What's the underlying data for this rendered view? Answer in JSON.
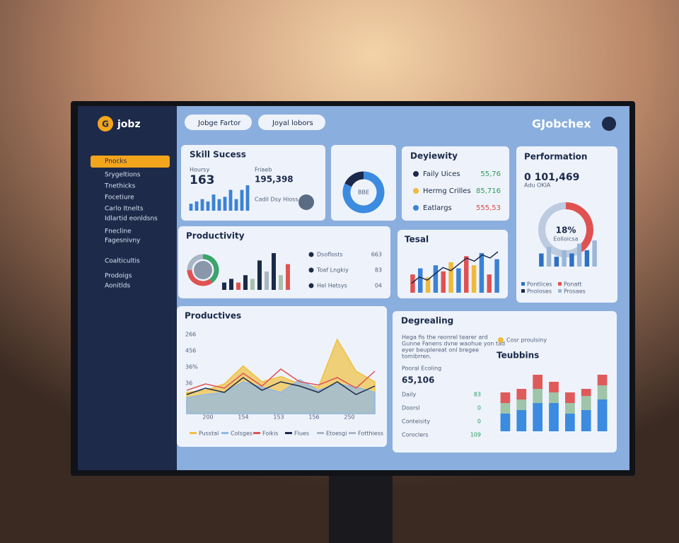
{
  "brand": {
    "logo": "G",
    "name": "jobz"
  },
  "header": {
    "search": "Jobge Fartor",
    "filter": "Joyal lobors",
    "title": "GJobchex"
  },
  "sidebar": [
    "Pnocks",
    "Srygeltions",
    "Tnethicks",
    "Focetiure",
    "Carlo Itnelts",
    "Idlartid eonldsns",
    "Fnecline",
    "Fagesnivny",
    "Coalticultis",
    "Prodoigs",
    "Aonitlds"
  ],
  "skill": {
    "title": "Skill Sucess",
    "label": "Hoursy",
    "value": "163",
    "label2": "Friaeb",
    "value2": "195,398",
    "note": "Cadil Dsy Hioss",
    "color": "#3b82d6",
    "bars": [
      3,
      4,
      5,
      4,
      7,
      5,
      6,
      9,
      5,
      9,
      11
    ],
    "donut": {
      "center": "BBE",
      "values": [
        82,
        18
      ],
      "colors": [
        "#3b8be0",
        "#1b2a4a"
      ]
    }
  },
  "activity": {
    "title": "Deyiewity",
    "rows": [
      {
        "label": "Faily Uices",
        "value": "55,76"
      },
      {
        "label": "Hermg Crilles",
        "value": "85,716"
      },
      {
        "label": "Eatlargs",
        "value": "555,53"
      }
    ]
  },
  "performance": {
    "title": "Performation",
    "value": "0 101,469",
    "sub": "Adu OKIA",
    "center": "18%",
    "center_sub": "Eolloicsa",
    "ring": {
      "values": [
        40,
        60
      ],
      "colors": [
        "#e05252",
        "#bccbe0"
      ]
    },
    "bars": [
      4,
      6,
      3,
      5,
      4,
      7,
      5,
      8
    ],
    "colors": [
      "#2f6fc4",
      "#9bb6d8"
    ],
    "legend": [
      "Pontlices",
      "Ponatt",
      "Pnoloses",
      "Prosaes"
    ]
  },
  "productivity": {
    "title": "Productivity",
    "donut": {
      "values": [
        40,
        35,
        25
      ],
      "colors": [
        "#3aa46a",
        "#e05252",
        "#a9b6c6"
      ]
    },
    "bars": [
      2,
      3,
      2,
      4,
      3,
      8,
      5,
      10,
      4,
      7
    ],
    "colors": [
      "#1b2a4a",
      "#1b2a4a",
      "#e05252",
      "#1b2a4a",
      "#a9c0b0",
      "#1b2a4a",
      "#a9b6c6",
      "#1b2a4a",
      "#a9c0b0",
      "#e05252"
    ],
    "rows": [
      {
        "label": "Dsoflosts",
        "value": "663"
      },
      {
        "label": "Toaf Lngkiy",
        "value": "83"
      },
      {
        "label": "Hel Hetsys",
        "value": "04"
      }
    ]
  },
  "tesal": {
    "title": "Tesal",
    "bars": [
      6,
      8,
      5,
      9,
      7,
      10,
      8,
      12,
      9,
      13,
      6,
      11
    ],
    "colors": [
      "#e05252",
      "#3b82d6",
      "#f0b93a",
      "#3b82d6",
      "#e05252",
      "#f0b93a",
      "#3b82d6",
      "#e05252",
      "#f0b93a",
      "#3b82d6",
      "#e05252",
      "#3b82d6"
    ],
    "line": [
      3,
      5,
      4,
      6,
      8,
      7,
      9,
      11,
      10,
      12,
      11,
      13
    ],
    "line_color": "#1b2a4a"
  },
  "productives": {
    "title": "Productives",
    "ytick_labels": [
      "266",
      "456",
      "36%",
      "36"
    ],
    "x_labels": [
      "200",
      "154",
      "153",
      "156",
      "250"
    ],
    "series": [
      {
        "name": "Pusstal",
        "color": "#f0c040",
        "values": [
          20,
          22,
          28,
          45,
          30,
          35,
          28,
          25,
          70,
          40,
          30
        ]
      },
      {
        "name": "Colsges",
        "color": "#8fb8e8",
        "values": [
          15,
          18,
          20,
          30,
          25,
          20,
          32,
          22,
          28,
          25,
          20
        ]
      },
      {
        "name": "Foikis",
        "color": "#e05252",
        "values": [
          22,
          28,
          24,
          38,
          26,
          42,
          30,
          27,
          34,
          24,
          40
        ]
      },
      {
        "name": "Flues",
        "color": "#1b2a4a",
        "values": [
          18,
          24,
          20,
          34,
          22,
          30,
          26,
          20,
          30,
          18,
          26
        ]
      }
    ],
    "legend_extra": [
      "Etoesgi",
      "Fotthiess"
    ]
  },
  "degrealing": {
    "title": "Degrealing",
    "text": [
      "Hega fis the reonrel tearer ard",
      "Gunne Fanens dvne waohue yon tad",
      "eyer beuplereat onl bregee",
      "tomibrren."
    ],
    "metric_label": "Pooral Ecoling",
    "metric": "65,106",
    "rows": [
      {
        "label": "Daily",
        "value": "83"
      },
      {
        "label": "Doorsl",
        "value": "0"
      },
      {
        "label": "Conteisity",
        "value": "0"
      },
      {
        "label": "Coroclers",
        "value": "109"
      }
    ],
    "chip": "Cosr proulsiny",
    "chart_title": "Teubbins",
    "series": [
      {
        "color": "#3b8be0",
        "values": [
          5,
          6,
          8,
          8,
          5,
          6,
          9
        ]
      },
      {
        "color": "#9fc4a8",
        "values": [
          3,
          3,
          4,
          3,
          3,
          4,
          4
        ]
      },
      {
        "color": "#e05a5a",
        "values": [
          3,
          3,
          4,
          3,
          3,
          2,
          3
        ]
      }
    ]
  }
}
